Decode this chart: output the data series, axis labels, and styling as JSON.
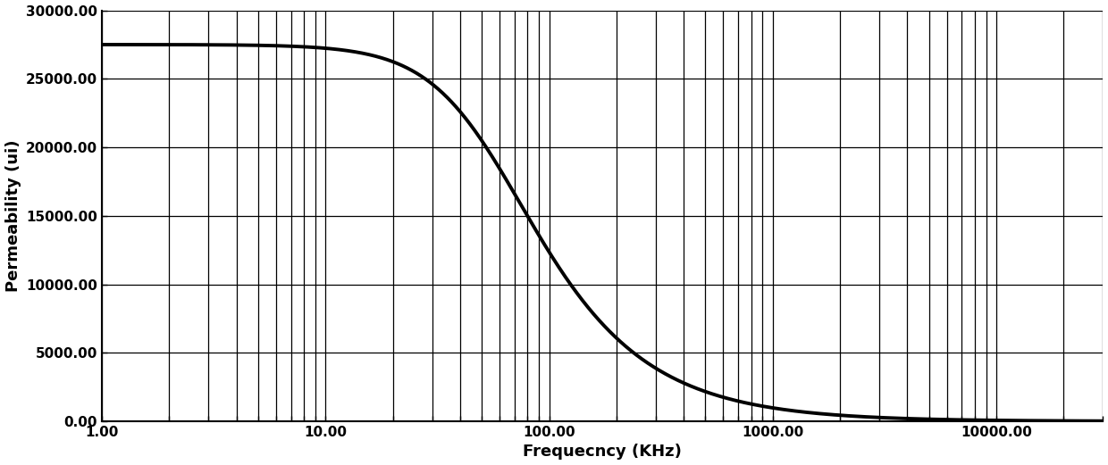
{
  "xlabel": "Frequecncy (KHz)",
  "ylabel": "Permeability (ui)",
  "xmin": 1.0,
  "xmax": 30000.0,
  "ymin": 0.0,
  "ymax": 30000.0,
  "yticks": [
    0,
    5000,
    10000,
    15000,
    20000,
    25000,
    30000
  ],
  "ytick_labels": [
    "0.00",
    "5000.00",
    "10000.00",
    "15000.00",
    "20000.00",
    "25000.00",
    "30000.00"
  ],
  "xtick_positions": [
    1.0,
    10.0,
    100.0,
    1000.0,
    10000.0
  ],
  "xtick_labels": [
    "1.00",
    "10.00",
    "100.00",
    "1000.00",
    "10000.00"
  ],
  "line_color": "#000000",
  "line_width": 2.8,
  "grid_color": "#000000",
  "grid_linewidth": 0.9,
  "background_color": "#ffffff",
  "mu_initial": 27500.0,
  "f_cutoff": 55.0,
  "rolloff_steepness": 1.15,
  "xlabel_fontsize": 13,
  "ylabel_fontsize": 13,
  "tick_fontsize": 11
}
